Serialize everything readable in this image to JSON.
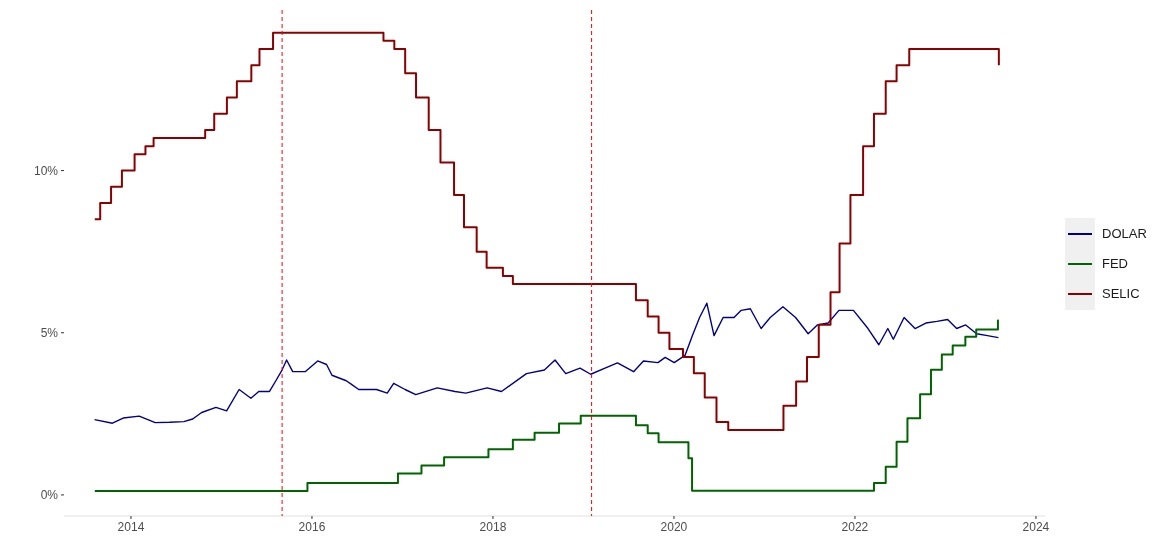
{
  "chart_data": {
    "type": "line",
    "xlim": [
      2013.26,
      2024.1
    ],
    "xticks": [
      2014,
      2016,
      2018,
      2020,
      2022,
      2024
    ],
    "ylim": [
      -0.65,
      14.95
    ],
    "yticks": [
      {
        "value": 0,
        "label": "0%"
      },
      {
        "value": 5,
        "label": "5%"
      },
      {
        "value": 10,
        "label": "10%"
      }
    ],
    "grid": false,
    "legend": "right",
    "marker": "none",
    "series": [
      {
        "name": "DOLAR",
        "type": "line",
        "color": "#00008b",
        "x": [
          2013.598,
          2013.795,
          2013.914,
          2014.091,
          2014.268,
          2014.426,
          2014.584,
          2014.682,
          2014.781,
          2014.939,
          2015.057,
          2015.195,
          2015.325,
          2015.412,
          2015.531,
          2015.601,
          2015.669,
          2015.72,
          2015.787,
          2015.925,
          2016.063,
          2016.161,
          2016.221,
          2016.379,
          2016.437,
          2016.517,
          2016.713,
          2016.832,
          2016.903,
          2017.029,
          2017.147,
          2017.384,
          2017.581,
          2017.7,
          2017.936,
          2018.094,
          2018.37,
          2018.568,
          2018.686,
          2018.804,
          2018.962,
          2019.08,
          2019.238,
          2019.376,
          2019.554,
          2019.663,
          2019.823,
          2019.903,
          2020.003,
          2020.122,
          2020.203,
          2020.283,
          2020.363,
          2020.443,
          2020.543,
          2020.664,
          2020.743,
          2020.844,
          2020.963,
          2021.064,
          2021.204,
          2021.344,
          2021.483,
          2021.584,
          2021.704,
          2021.823,
          2021.983,
          2022.144,
          2022.264,
          2022.363,
          2022.424,
          2022.543,
          2022.664,
          2022.784,
          2022.905,
          2023.024,
          2023.124,
          2023.224,
          2023.344,
          2023.464,
          2023.585
        ],
        "values": [
          2.32,
          2.21,
          2.37,
          2.43,
          2.23,
          2.24,
          2.26,
          2.34,
          2.54,
          2.7,
          2.59,
          3.25,
          2.98,
          3.19,
          3.19,
          3.52,
          3.85,
          4.16,
          3.8,
          3.8,
          4.13,
          4.02,
          3.69,
          3.52,
          3.41,
          3.25,
          3.25,
          3.14,
          3.44,
          3.25,
          3.09,
          3.3,
          3.19,
          3.14,
          3.3,
          3.19,
          3.74,
          3.85,
          4.16,
          3.74,
          3.91,
          3.72,
          3.91,
          4.07,
          3.8,
          4.13,
          4.08,
          4.24,
          4.08,
          4.3,
          4.91,
          5.47,
          5.91,
          4.91,
          5.47,
          5.47,
          5.69,
          5.74,
          5.13,
          5.47,
          5.8,
          5.47,
          4.97,
          5.24,
          5.3,
          5.69,
          5.69,
          5.13,
          4.63,
          5.13,
          4.8,
          5.47,
          5.13,
          5.3,
          5.35,
          5.41,
          5.13,
          5.24,
          4.97,
          4.91,
          4.85
        ]
      },
      {
        "name": "FED",
        "type": "step",
        "color": "#006400",
        "x": [
          2013.6,
          2015.95,
          2016.95,
          2017.21,
          2017.46,
          2017.95,
          2018.22,
          2018.46,
          2018.73,
          2018.97,
          2019.58,
          2019.71,
          2019.83,
          2020.16,
          2020.2,
          2022.21,
          2022.34,
          2022.46,
          2022.58,
          2022.72,
          2022.84,
          2022.96,
          2023.08,
          2023.22,
          2023.34,
          2023.58,
          2023.59
        ],
        "values": [
          0.12,
          0.37,
          0.66,
          0.91,
          1.16,
          1.41,
          1.7,
          1.92,
          2.2,
          2.44,
          2.15,
          1.9,
          1.62,
          1.13,
          0.13,
          0.37,
          0.87,
          1.64,
          2.36,
          3.1,
          3.86,
          4.33,
          4.61,
          4.88,
          5.1,
          5.38,
          5.38
        ]
      },
      {
        "name": "SELIC",
        "type": "step",
        "color": "#8b0000",
        "x": [
          2013.6,
          2013.66,
          2013.78,
          2013.9,
          2014.04,
          2014.16,
          2014.25,
          2014.82,
          2014.92,
          2015.06,
          2015.17,
          2015.33,
          2015.42,
          2015.57,
          2016.79,
          2016.91,
          2017.03,
          2017.15,
          2017.29,
          2017.42,
          2017.57,
          2017.68,
          2017.82,
          2017.93,
          2018.11,
          2018.22,
          2019.58,
          2019.71,
          2019.83,
          2019.95,
          2020.1,
          2020.22,
          2020.34,
          2020.47,
          2020.6,
          2021.21,
          2021.35,
          2021.47,
          2021.6,
          2021.73,
          2021.83,
          2021.95,
          2022.09,
          2022.21,
          2022.34,
          2022.46,
          2022.6,
          2023.59
        ],
        "values": [
          8.5,
          9.0,
          9.5,
          10.0,
          10.5,
          10.75,
          11.0,
          11.25,
          11.75,
          12.25,
          12.75,
          13.25,
          13.75,
          14.25,
          14.0,
          13.75,
          13.0,
          12.25,
          11.25,
          10.25,
          9.25,
          8.25,
          7.5,
          7.0,
          6.75,
          6.5,
          6.0,
          5.5,
          5.0,
          4.5,
          4.25,
          3.75,
          3.0,
          2.25,
          2.0,
          2.75,
          3.5,
          4.25,
          5.25,
          6.25,
          7.75,
          9.25,
          10.75,
          11.75,
          12.75,
          13.25,
          13.75,
          13.25
        ]
      }
    ],
    "ref_lines": [
      {
        "axis": "x",
        "value": 2015.67,
        "color": "#ff0000",
        "line_style": "dashed"
      },
      {
        "axis": "x",
        "value": 2019.09,
        "color": "#ff0000",
        "line_style": "dashed"
      }
    ]
  }
}
